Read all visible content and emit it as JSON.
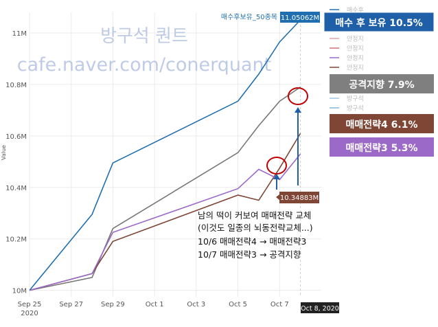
{
  "watermark": {
    "line1": "방구석 퀀트",
    "line2": "cafe.naver.com/conerquant"
  },
  "hover": {
    "series_label": "매수후보유_50종목",
    "value_label": "11.05062M",
    "point_label": "10.34883M",
    "date_label": "Oct 8, 2020"
  },
  "annotation": {
    "lines": [
      "남의 떡이 커보여 매매전략 교체",
      "(이것도 일종의 뇌동전략교체...)",
      "10/6 매매전략4 → 매매전략3",
      "10/7 매매전략3 → 공격지향"
    ]
  },
  "callouts": [
    {
      "text": "매수 후 보유 10.5%",
      "color": "#1f5fa8"
    },
    {
      "text": "공격지향 7.9%",
      "color": "#7f7f7f"
    },
    {
      "text": "매매전략4 6.1%",
      "color": "#7f4535"
    },
    {
      "text": "매매전략3 5.3%",
      "color": "#9b69c8"
    }
  ],
  "legend_partial": [
    "매수후",
    "매수후",
    "안정지",
    "안정지",
    "안정지",
    "안정지",
    "안정지",
    "방구석",
    "방구석"
  ],
  "chart_data": {
    "type": "line",
    "x_ticks": [
      "Sep 25",
      "Sep 27",
      "Sep 29",
      "Oct 1",
      "Oct 3",
      "Oct 5",
      "Oct 7"
    ],
    "x_tick_year": "2020",
    "y_ticks": [
      "10M",
      "10.2M",
      "10.4M",
      "10.6M",
      "10.8M",
      "11M"
    ],
    "y_tick_values": [
      10000000,
      10200000,
      10400000,
      10600000,
      10800000,
      11000000
    ],
    "ylabel": "Value",
    "ylim": [
      9975000,
      11080000
    ],
    "x": [
      "2020-09-25",
      "2020-09-28",
      "2020-09-29",
      "2020-10-05",
      "2020-10-06",
      "2020-10-07",
      "2020-10-08"
    ],
    "series": [
      {
        "name": "매수 후 보유",
        "color": "#1f6fb0",
        "values": [
          10000000,
          10295000,
          10495000,
          10735000,
          10840000,
          10965000,
          11050620
        ]
      },
      {
        "name": "공격지향",
        "color": "#777777",
        "values": [
          10000000,
          10050000,
          10240000,
          10535000,
          10640000,
          10735000,
          10790000
        ]
      },
      {
        "name": "매매전략4",
        "color": "#7f4535",
        "values": [
          10000000,
          10065000,
          10190000,
          10370000,
          10350000,
          10475000,
          10610000
        ]
      },
      {
        "name": "매매전략3",
        "color": "#9b69c8",
        "values": [
          10000000,
          10065000,
          10225000,
          10395000,
          10470000,
          10430000,
          10530000
        ]
      }
    ]
  }
}
